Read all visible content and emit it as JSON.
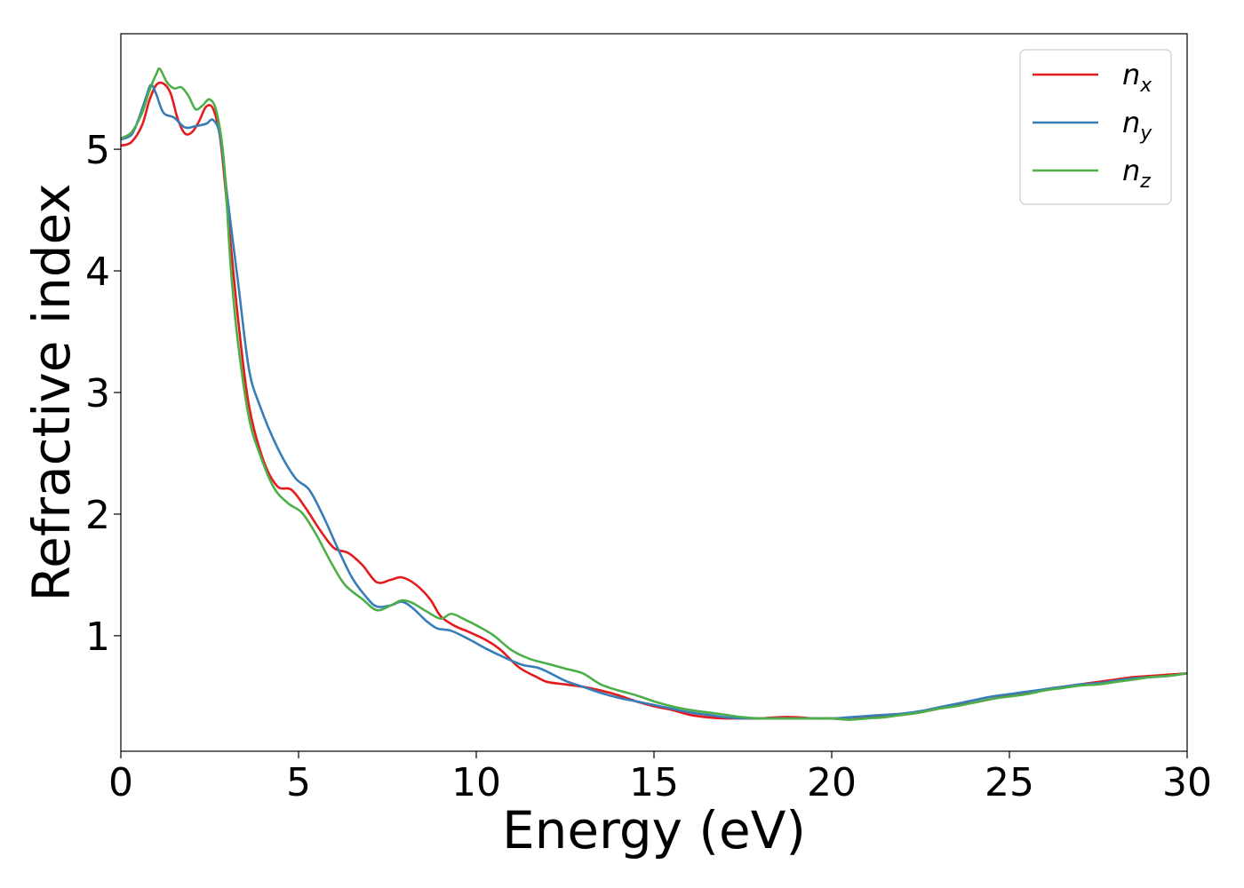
{
  "chart_data": {
    "type": "line",
    "xlabel": "Energy (eV)",
    "ylabel": "Refractive index",
    "xlim": [
      0,
      30
    ],
    "ylim": [
      0.05,
      5.95
    ],
    "xticks": [
      0,
      5,
      10,
      15,
      20,
      25,
      30
    ],
    "xtick_labels": [
      "0",
      "5",
      "10",
      "15",
      "20",
      "25",
      "30"
    ],
    "yticks": [
      1,
      2,
      3,
      4,
      5
    ],
    "ytick_labels": [
      "1",
      "2",
      "3",
      "4",
      "5"
    ],
    "grid": false,
    "legend_position": "top-right",
    "series": [
      {
        "name": "n_x",
        "label_base": "n",
        "label_sub": "x",
        "color": "#e41a1c",
        "x": [
          0,
          0.3,
          0.6,
          0.8,
          1.0,
          1.2,
          1.4,
          1.6,
          1.8,
          2.0,
          2.2,
          2.4,
          2.6,
          2.8,
          3.0,
          3.3,
          3.6,
          4.0,
          4.4,
          4.8,
          5.2,
          5.6,
          6.0,
          6.4,
          6.8,
          7.2,
          7.6,
          7.9,
          8.3,
          8.7,
          9.0,
          9.4,
          9.8,
          10.3,
          10.7,
          11.2,
          11.7,
          12.0,
          12.5,
          13.0,
          13.5,
          14.0,
          14.5,
          15.0,
          15.5,
          16.0,
          16.5,
          17.0,
          17.5,
          18.0,
          18.5,
          19.0,
          19.5,
          20.0,
          20.5,
          21.0,
          21.5,
          22.0,
          22.5,
          23.0,
          23.5,
          24.0,
          24.5,
          25.0,
          25.5,
          26.0,
          26.5,
          27.0,
          27.5,
          28.0,
          28.5,
          29.0,
          29.5,
          30.0
        ],
        "y": [
          5.03,
          5.06,
          5.2,
          5.4,
          5.53,
          5.54,
          5.46,
          5.25,
          5.13,
          5.14,
          5.23,
          5.35,
          5.33,
          5.08,
          4.5,
          3.6,
          2.9,
          2.45,
          2.23,
          2.2,
          2.05,
          1.87,
          1.72,
          1.68,
          1.58,
          1.44,
          1.46,
          1.48,
          1.42,
          1.3,
          1.16,
          1.08,
          1.03,
          0.96,
          0.88,
          0.74,
          0.66,
          0.62,
          0.6,
          0.58,
          0.55,
          0.51,
          0.46,
          0.42,
          0.39,
          0.35,
          0.33,
          0.32,
          0.32,
          0.32,
          0.33,
          0.33,
          0.32,
          0.32,
          0.31,
          0.33,
          0.34,
          0.35,
          0.37,
          0.4,
          0.43,
          0.45,
          0.48,
          0.51,
          0.53,
          0.56,
          0.58,
          0.6,
          0.62,
          0.64,
          0.66,
          0.67,
          0.68,
          0.69
        ]
      },
      {
        "name": "n_y",
        "label_base": "n",
        "label_sub": "y",
        "color": "#377eb8",
        "x": [
          0,
          0.3,
          0.5,
          0.7,
          0.85,
          1.0,
          1.2,
          1.5,
          1.8,
          2.1,
          2.4,
          2.6,
          2.8,
          3.0,
          3.3,
          3.6,
          3.9,
          4.4,
          4.9,
          5.3,
          5.7,
          6.1,
          6.5,
          6.9,
          7.2,
          7.6,
          7.9,
          8.2,
          8.6,
          8.9,
          9.3,
          9.8,
          10.3,
          10.8,
          11.3,
          11.8,
          12.5,
          13.0,
          13.5,
          14.0,
          14.5,
          15.0,
          15.5,
          16.0,
          16.5,
          17.0,
          17.5,
          18.0,
          18.5,
          19.0,
          19.5,
          20.0,
          20.5,
          21.0,
          21.5,
          22.0,
          22.5,
          23.0,
          23.5,
          24.0,
          24.5,
          25.0,
          25.5,
          26.0,
          26.5,
          27.0,
          27.5,
          28.0,
          28.5,
          29.0,
          29.5,
          30.0
        ],
        "y": [
          5.08,
          5.12,
          5.25,
          5.42,
          5.53,
          5.45,
          5.3,
          5.26,
          5.18,
          5.19,
          5.21,
          5.24,
          5.1,
          4.6,
          3.9,
          3.2,
          2.9,
          2.55,
          2.3,
          2.2,
          1.98,
          1.72,
          1.48,
          1.32,
          1.24,
          1.25,
          1.28,
          1.23,
          1.12,
          1.06,
          1.04,
          0.97,
          0.89,
          0.82,
          0.76,
          0.73,
          0.63,
          0.58,
          0.53,
          0.49,
          0.46,
          0.43,
          0.4,
          0.37,
          0.35,
          0.33,
          0.32,
          0.32,
          0.32,
          0.32,
          0.32,
          0.32,
          0.33,
          0.34,
          0.35,
          0.36,
          0.38,
          0.41,
          0.44,
          0.47,
          0.5,
          0.52,
          0.54,
          0.56,
          0.58,
          0.6,
          0.61,
          0.63,
          0.65,
          0.66,
          0.67,
          0.69
        ]
      },
      {
        "name": "n_z",
        "label_base": "n",
        "label_sub": "z",
        "color": "#4daf4a",
        "x": [
          0,
          0.3,
          0.6,
          0.8,
          1.0,
          1.1,
          1.3,
          1.5,
          1.7,
          1.9,
          2.1,
          2.3,
          2.5,
          2.7,
          2.9,
          3.1,
          3.3,
          3.6,
          3.9,
          4.3,
          4.7,
          5.1,
          5.5,
          5.9,
          6.3,
          6.8,
          7.2,
          7.6,
          7.9,
          8.2,
          8.6,
          9.0,
          9.3,
          9.7,
          10.1,
          10.5,
          11.0,
          11.5,
          12.0,
          12.5,
          13.0,
          13.5,
          14.0,
          14.5,
          15.0,
          15.5,
          16.0,
          16.5,
          17.0,
          17.5,
          18.0,
          18.5,
          19.0,
          19.5,
          20.0,
          20.5,
          21.0,
          21.5,
          22.0,
          22.5,
          23.0,
          23.5,
          24.0,
          24.5,
          25.0,
          25.5,
          26.0,
          26.5,
          27.0,
          27.5,
          28.0,
          28.5,
          29.0,
          29.5,
          30.0
        ],
        "y": [
          5.09,
          5.14,
          5.3,
          5.48,
          5.62,
          5.66,
          5.55,
          5.5,
          5.51,
          5.44,
          5.33,
          5.36,
          5.41,
          5.3,
          4.9,
          4.0,
          3.4,
          2.8,
          2.5,
          2.22,
          2.09,
          2.01,
          1.83,
          1.61,
          1.42,
          1.3,
          1.21,
          1.25,
          1.29,
          1.27,
          1.2,
          1.14,
          1.18,
          1.13,
          1.07,
          1.0,
          0.88,
          0.81,
          0.77,
          0.73,
          0.69,
          0.6,
          0.55,
          0.51,
          0.46,
          0.42,
          0.39,
          0.37,
          0.35,
          0.33,
          0.32,
          0.32,
          0.32,
          0.32,
          0.32,
          0.31,
          0.32,
          0.33,
          0.35,
          0.37,
          0.4,
          0.42,
          0.45,
          0.48,
          0.5,
          0.52,
          0.55,
          0.57,
          0.59,
          0.6,
          0.62,
          0.64,
          0.66,
          0.67,
          0.69
        ]
      }
    ]
  }
}
